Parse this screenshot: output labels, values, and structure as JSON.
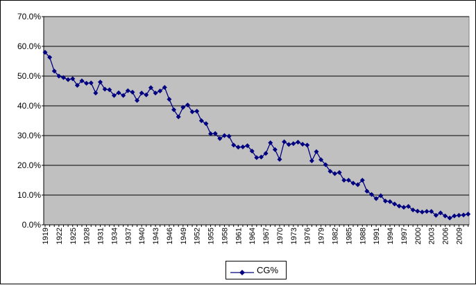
{
  "chart_data": {
    "type": "line",
    "title": "",
    "xlabel": "",
    "ylabel": "",
    "ylim": [
      0,
      70
    ],
    "y_tick_labels": [
      "0.0%",
      "10.0%",
      "20.0%",
      "30.0%",
      "40.0%",
      "50.0%",
      "60.0%",
      "70.0%"
    ],
    "x_tick_labels": [
      "1919",
      "1922",
      "1925",
      "1928",
      "1931",
      "1934",
      "1937",
      "1940",
      "1943",
      "1946",
      "1949",
      "1952",
      "1955",
      "1958",
      "1961",
      "1964",
      "1967",
      "1970",
      "1973",
      "1976",
      "1979",
      "1982",
      "1985",
      "1988",
      "1991",
      "1994",
      "1997",
      "2000",
      "2003",
      "2006",
      "2009"
    ],
    "grid": true,
    "legend_position": "bottom",
    "plot_background": "#c0c0c0",
    "series_color": "#000080",
    "x": [
      1919,
      1920,
      1921,
      1922,
      1923,
      1924,
      1925,
      1926,
      1927,
      1928,
      1929,
      1930,
      1931,
      1932,
      1933,
      1934,
      1935,
      1936,
      1937,
      1938,
      1939,
      1940,
      1941,
      1942,
      1943,
      1944,
      1945,
      1946,
      1947,
      1948,
      1949,
      1950,
      1951,
      1952,
      1953,
      1954,
      1955,
      1956,
      1957,
      1958,
      1959,
      1960,
      1961,
      1962,
      1963,
      1964,
      1965,
      1966,
      1967,
      1968,
      1969,
      1970,
      1971,
      1972,
      1973,
      1974,
      1975,
      1976,
      1977,
      1978,
      1979,
      1980,
      1981,
      1982,
      1983,
      1984,
      1985,
      1986,
      1987,
      1988,
      1989,
      1990,
      1991,
      1992,
      1993,
      1994,
      1995,
      1996,
      1997,
      1998,
      1999,
      2000,
      2001,
      2002,
      2003,
      2004,
      2005,
      2006,
      2007,
      2008,
      2009,
      2010,
      2011
    ],
    "series": [
      {
        "name": "CG%",
        "values": [
          58.0,
          56.3,
          51.7,
          50.0,
          49.5,
          48.8,
          49.1,
          46.9,
          48.4,
          47.6,
          47.7,
          44.3,
          48.0,
          45.6,
          45.4,
          43.5,
          44.4,
          43.5,
          45.1,
          44.6,
          41.8,
          44.3,
          43.7,
          46.1,
          44.3,
          45.0,
          46.2,
          42.2,
          38.7,
          36.3,
          39.5,
          40.3,
          38.0,
          38.2,
          35.0,
          34.0,
          30.6,
          30.7,
          29.0,
          30.0,
          29.8,
          26.8,
          26.1,
          26.2,
          26.6,
          24.8,
          22.6,
          22.8,
          24.0,
          27.6,
          25.3,
          22.0,
          27.9,
          27.0,
          27.3,
          27.8,
          27.1,
          26.8,
          21.5,
          24.6,
          21.9,
          20.2,
          18.0,
          17.2,
          17.6,
          15.0,
          15.0,
          14.0,
          13.5,
          15.0,
          11.3,
          10.2,
          8.8,
          9.8,
          8.0,
          7.8,
          7.0,
          6.3,
          5.9,
          6.2,
          5.0,
          4.6,
          4.3,
          4.5,
          4.5,
          3.2,
          4.0,
          3.0,
          2.3,
          3.0,
          3.2,
          3.3,
          3.6
        ]
      }
    ]
  }
}
